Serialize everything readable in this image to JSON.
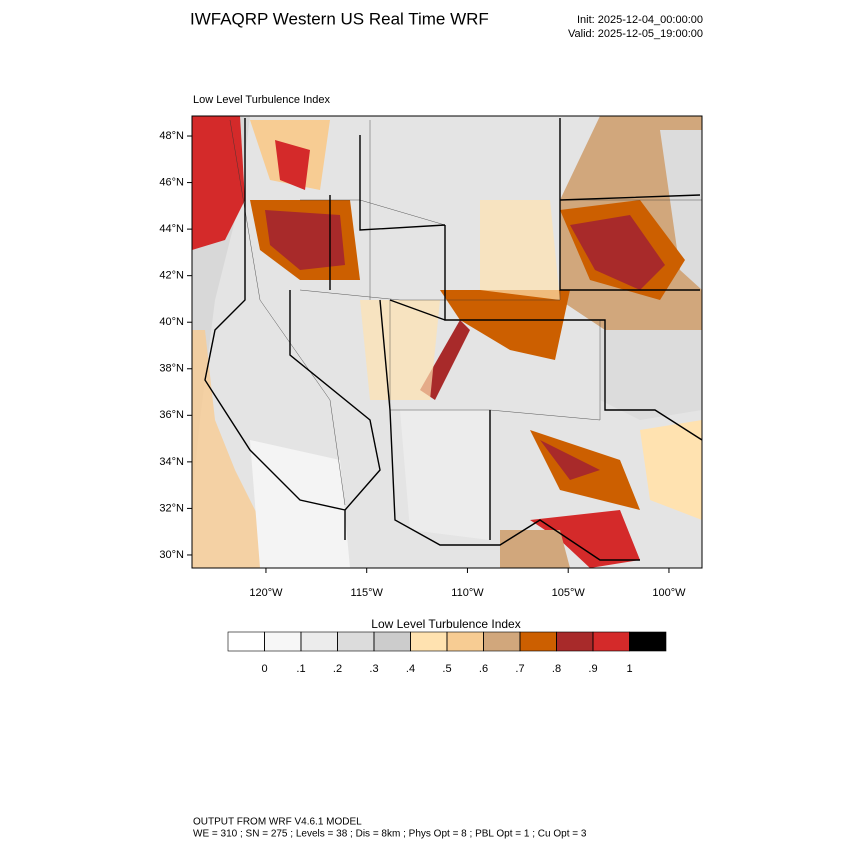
{
  "header": {
    "title": "IWFAQRP Western US Real Time WRF",
    "init": "Init: 2025-12-04_00:00:00",
    "valid": "Valid: 2025-12-05_19:00:00"
  },
  "plot": {
    "subtitle": "Low Level Turbulence Index",
    "latlim": [
      29.44,
      48.86
    ],
    "lonlim": [
      -123.67,
      -98.36
    ],
    "lat_ticks": [
      {
        "value": 30,
        "label": "30°N"
      },
      {
        "value": 32,
        "label": "32°N"
      },
      {
        "value": 34,
        "label": "34°N"
      },
      {
        "value": 36,
        "label": "36°N"
      },
      {
        "value": 38,
        "label": "38°N"
      },
      {
        "value": 40,
        "label": "40°N"
      },
      {
        "value": 42,
        "label": "42°N"
      },
      {
        "value": 44,
        "label": "44°N"
      },
      {
        "value": 46,
        "label": "46°N"
      },
      {
        "value": 48,
        "label": "48°N"
      }
    ],
    "lon_ticks": [
      {
        "value": -120,
        "label": "120°W"
      },
      {
        "value": -115,
        "label": "115°W"
      },
      {
        "value": -110,
        "label": "110°W"
      },
      {
        "value": -105,
        "label": "105°W"
      },
      {
        "value": -100,
        "label": "100°W"
      }
    ]
  },
  "colorbar": {
    "title": "Low Level Turbulence Index",
    "colors": [
      "#ffffff",
      "#f7f7f7",
      "#ececec",
      "#dcdcdc",
      "#cccccc",
      "#ffe2b0",
      "#f7cc93",
      "#d1a77c",
      "#cc5f00",
      "#a82a2a",
      "#d42a2a",
      "#000000"
    ],
    "levels": [
      0,
      {
        "value": 0.1,
        "label": ".1"
      },
      {
        "value": 0.2,
        "label": ".2"
      },
      {
        "value": 0.3,
        "label": ".3"
      },
      {
        "value": 0.4,
        "label": ".4"
      },
      {
        "value": 0.5,
        "label": ".5"
      },
      {
        "value": 0.6,
        "label": ".6"
      },
      {
        "value": 0.7,
        "label": ".7"
      },
      {
        "value": 0.8,
        "label": ".8"
      },
      {
        "value": 0.9,
        "label": ".9"
      },
      1
    ]
  },
  "footer": {
    "line1": "OUTPUT FROM WRF V4.6.1 MODEL",
    "line2": "WE = 310 ; SN = 275 ; Levels = 38 ; Dis = 8km ; Phys Opt = 8 ; PBL Opt = 1 ; Cu Opt = 3"
  }
}
